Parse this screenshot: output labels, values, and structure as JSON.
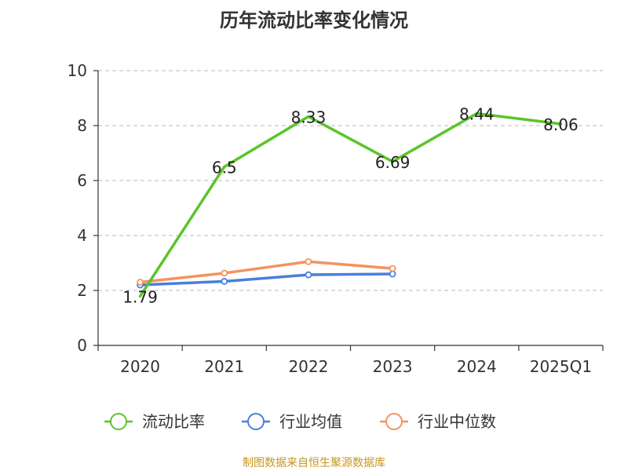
{
  "chart_data": {
    "type": "line",
    "title": "历年流动比率变化情况",
    "categories": [
      "2020",
      "2021",
      "2022",
      "2023",
      "2024",
      "2025Q1"
    ],
    "ylim": [
      0,
      10
    ],
    "yticks": [
      "0",
      "2",
      "4",
      "6",
      "8",
      "10"
    ],
    "grid": true,
    "legend_position": "bottom",
    "series": [
      {
        "name": "流动比率",
        "color": "#5bc42a",
        "values": [
          1.79,
          6.5,
          8.33,
          6.69,
          8.44,
          8.06
        ],
        "labels": [
          "1.79",
          "6.5",
          "8.33",
          "6.69",
          "8.44",
          "8.06"
        ],
        "show_labels": true,
        "markers": false
      },
      {
        "name": "行业均值",
        "color": "#4a7fdc",
        "values": [
          2.2,
          2.33,
          2.57,
          2.6,
          null,
          null
        ],
        "show_labels": false,
        "markers": true
      },
      {
        "name": "行业中位数",
        "color": "#f5925e",
        "values": [
          2.3,
          2.63,
          3.05,
          2.8,
          null,
          null
        ],
        "show_labels": false,
        "markers": true
      }
    ]
  },
  "footer": "制图数据来自恒生聚源数据库"
}
